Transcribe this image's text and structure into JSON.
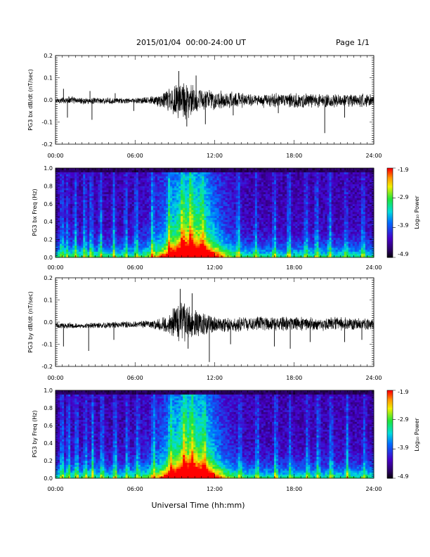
{
  "header": {
    "title": "2015/01/04  00:00-24:00 UT",
    "page": "Page 1/1"
  },
  "xlabel": "Universal Time (hh:mm)",
  "colors": {
    "axis": "#000000",
    "trace": "#000000"
  },
  "chart_data": [
    {
      "type": "line",
      "ylabel": "PG3 bx dB/dt (nT/sec)",
      "xlim": [
        0,
        24
      ],
      "ylim": [
        -0.2,
        0.2
      ],
      "x_ticks": [
        "00:00",
        "06:00",
        "12:00",
        "18:00",
        "24:00"
      ],
      "y_ticks": [
        "0.2",
        "0.1",
        "0.0",
        "-0.1",
        "-0.2"
      ],
      "envelope": {
        "hours": [
          0,
          1,
          2,
          3,
          4,
          5,
          6,
          7,
          8,
          8.5,
          9,
          9.5,
          10,
          10.5,
          11,
          11.5,
          12,
          13,
          14,
          15,
          16,
          17,
          18,
          19,
          20,
          21,
          22,
          23,
          24
        ],
        "upper": [
          0.01,
          0.02,
          0.01,
          0.015,
          0.01,
          0.01,
          0.01,
          0.015,
          0.03,
          0.06,
          0.09,
          0.1,
          0.09,
          0.07,
          0.06,
          0.05,
          0.05,
          0.04,
          0.04,
          0.03,
          0.035,
          0.03,
          0.035,
          0.03,
          0.03,
          0.03,
          0.03,
          0.03,
          0.03
        ],
        "lower": [
          -0.02,
          -0.02,
          -0.02,
          -0.02,
          -0.02,
          -0.02,
          -0.02,
          -0.02,
          -0.04,
          -0.06,
          -0.09,
          -0.1,
          -0.09,
          -0.07,
          -0.06,
          -0.05,
          -0.05,
          -0.04,
          -0.04,
          -0.035,
          -0.04,
          -0.035,
          -0.04,
          -0.035,
          -0.04,
          -0.04,
          -0.035,
          -0.035,
          -0.035
        ]
      },
      "spikes": [
        [
          0.6,
          0.05
        ],
        [
          0.9,
          -0.08
        ],
        [
          2.6,
          0.04
        ],
        [
          2.75,
          -0.09
        ],
        [
          4.5,
          0.03
        ],
        [
          5.9,
          -0.05
        ],
        [
          9.3,
          0.13
        ],
        [
          9.9,
          -0.12
        ],
        [
          10.6,
          0.11
        ],
        [
          11.3,
          -0.11
        ],
        [
          13.4,
          -0.07
        ],
        [
          16.8,
          -0.06
        ],
        [
          20.3,
          -0.15
        ],
        [
          21.8,
          -0.08
        ]
      ]
    },
    {
      "type": "heatmap",
      "ylabel": "PG3 bx Freq (Hz)",
      "xlim": [
        0,
        24
      ],
      "ylim": [
        0.0,
        1.0
      ],
      "x_ticks": [
        "00:00",
        "06:00",
        "12:00",
        "18:00",
        "24:00"
      ],
      "y_ticks": [
        "1.0",
        "0.8",
        "0.6",
        "0.4",
        "0.2",
        "0.0"
      ],
      "colorbar": {
        "label": "Log₁₀ Power",
        "range": [
          -4.9,
          -1.9
        ],
        "ticks": [
          "-1.9",
          "-2.9",
          "-3.9",
          "-4.9"
        ]
      },
      "activity_hours": [
        0.5,
        0.9,
        1.5,
        2.2,
        2.7,
        3.4,
        4.4,
        5.3,
        6.1,
        7.3,
        8.6,
        9.6,
        10.2,
        11.1,
        13.8,
        15.1,
        16.5,
        17.6,
        18.9,
        19.7,
        20.7,
        21.9,
        23.2
      ]
    },
    {
      "type": "line",
      "ylabel": "PG3 by dB/dt (nT/sec)",
      "xlim": [
        0,
        24
      ],
      "ylim": [
        -0.2,
        0.2
      ],
      "x_ticks": [
        "00:00",
        "06:00",
        "12:00",
        "18:00",
        "24:00"
      ],
      "y_ticks": [
        "0.2",
        "0.1",
        "0.0",
        "-0.1",
        "-0.2"
      ],
      "envelope": {
        "hours": [
          0,
          1,
          2,
          3,
          4,
          5,
          6,
          7,
          8,
          8.5,
          9,
          9.5,
          10,
          10.5,
          11,
          11.5,
          12,
          13,
          14,
          15,
          16,
          17,
          18,
          19,
          20,
          21,
          22,
          23,
          24
        ],
        "upper": [
          0.0,
          0.0,
          -0.005,
          0.0,
          0.0,
          0.005,
          0.005,
          0.01,
          0.02,
          0.05,
          0.08,
          0.1,
          0.09,
          0.07,
          0.05,
          0.04,
          0.03,
          0.03,
          0.03,
          0.03,
          0.03,
          0.025,
          0.03,
          0.025,
          0.025,
          0.025,
          0.025,
          0.02,
          0.02
        ],
        "lower": [
          -0.03,
          -0.03,
          -0.03,
          -0.03,
          -0.03,
          -0.03,
          -0.03,
          -0.03,
          -0.05,
          -0.07,
          -0.09,
          -0.1,
          -0.1,
          -0.09,
          -0.07,
          -0.06,
          -0.05,
          -0.05,
          -0.045,
          -0.04,
          -0.04,
          -0.04,
          -0.045,
          -0.04,
          -0.045,
          -0.04,
          -0.04,
          -0.04,
          -0.04
        ]
      },
      "spikes": [
        [
          0.6,
          -0.11
        ],
        [
          2.5,
          -0.13
        ],
        [
          4.4,
          -0.08
        ],
        [
          9.4,
          0.15
        ],
        [
          10.0,
          -0.12
        ],
        [
          10.3,
          0.13
        ],
        [
          11.6,
          -0.18
        ],
        [
          13.2,
          -0.1
        ],
        [
          16.5,
          -0.11
        ],
        [
          17.7,
          -0.12
        ],
        [
          19.2,
          -0.09
        ],
        [
          21.8,
          -0.09
        ],
        [
          23.1,
          -0.08
        ]
      ]
    },
    {
      "type": "heatmap",
      "ylabel": "PG3 by Freq (Hz)",
      "xlim": [
        0,
        24
      ],
      "ylim": [
        0.0,
        1.0
      ],
      "x_ticks": [
        "00:00",
        "06:00",
        "12:00",
        "18:00",
        "24:00"
      ],
      "y_ticks": [
        "1.0",
        "0.8",
        "0.6",
        "0.4",
        "0.2",
        "0.0"
      ],
      "colorbar": {
        "label": "Log₁₀ Power",
        "range": [
          -4.9,
          -1.9
        ],
        "ticks": [
          "-1.9",
          "-2.9",
          "-3.9",
          "-4.9"
        ]
      },
      "activity_hours": [
        0.5,
        1.0,
        1.6,
        2.3,
        2.8,
        3.5,
        4.5,
        5.4,
        6.2,
        7.4,
        8.7,
        9.7,
        10.3,
        11.2,
        13.9,
        15.2,
        16.6,
        17.7,
        19.0,
        19.8,
        20.8,
        22.0,
        23.3
      ]
    }
  ]
}
